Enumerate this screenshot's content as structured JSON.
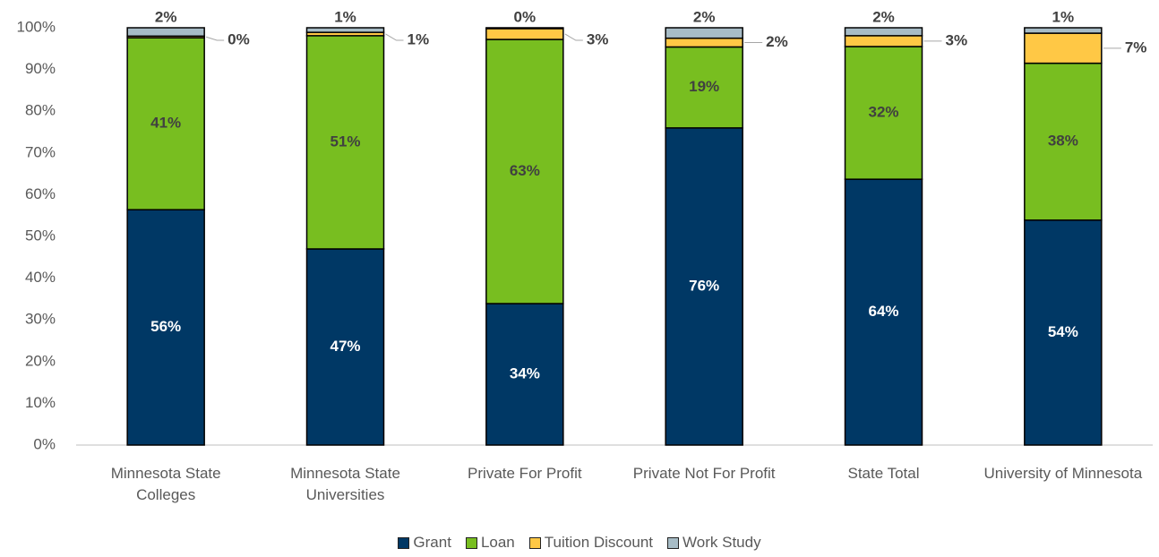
{
  "chart_data": {
    "type": "stacked_bar_100",
    "categories": [
      "Minnesota State Colleges",
      "Minnesota State Universities",
      "Private For Profit",
      "Private Not For Profit",
      "State Total",
      "University of Minnesota"
    ],
    "series": [
      {
        "name": "Grant",
        "color": "#003865",
        "values": [
          56.4,
          47.0,
          33.9,
          76.0,
          63.7,
          53.9
        ],
        "value_labels": [
          "56%",
          "47%",
          "34%",
          "76%",
          "64%",
          "54%"
        ]
      },
      {
        "name": "Loan",
        "color": "#78be20",
        "values": [
          41.2,
          51.1,
          63.3,
          19.4,
          31.8,
          37.6
        ],
        "value_labels": [
          "41%",
          "51%",
          "63%",
          "19%",
          "32%",
          "38%"
        ]
      },
      {
        "name": "Tuition Discount",
        "color": "#ffc845",
        "values": [
          0.4,
          0.8,
          2.6,
          2.1,
          2.6,
          7.2
        ],
        "value_labels": [
          "0%",
          "1%",
          "3%",
          "2%",
          "3%",
          "7%"
        ]
      },
      {
        "name": "Work Study",
        "color": "#a7bcc6",
        "values": [
          2.0,
          1.1,
          0.2,
          2.5,
          1.9,
          1.3
        ],
        "value_labels": [
          "2%",
          "1%",
          "0%",
          "2%",
          "2%",
          "1%"
        ]
      }
    ],
    "ylim": [
      0,
      100
    ],
    "yticks": [
      {
        "value": 0,
        "label": "0%"
      },
      {
        "value": 10,
        "label": "10%"
      },
      {
        "value": 20,
        "label": "20%"
      },
      {
        "value": 30,
        "label": "30%"
      },
      {
        "value": 40,
        "label": "40%"
      },
      {
        "value": 50,
        "label": "50%"
      },
      {
        "value": 60,
        "label": "60%"
      },
      {
        "value": 70,
        "label": "70%"
      },
      {
        "value": 80,
        "label": "80%"
      },
      {
        "value": 90,
        "label": "90%"
      },
      {
        "value": 100,
        "label": "100%"
      }
    ],
    "legend": "bottom"
  }
}
